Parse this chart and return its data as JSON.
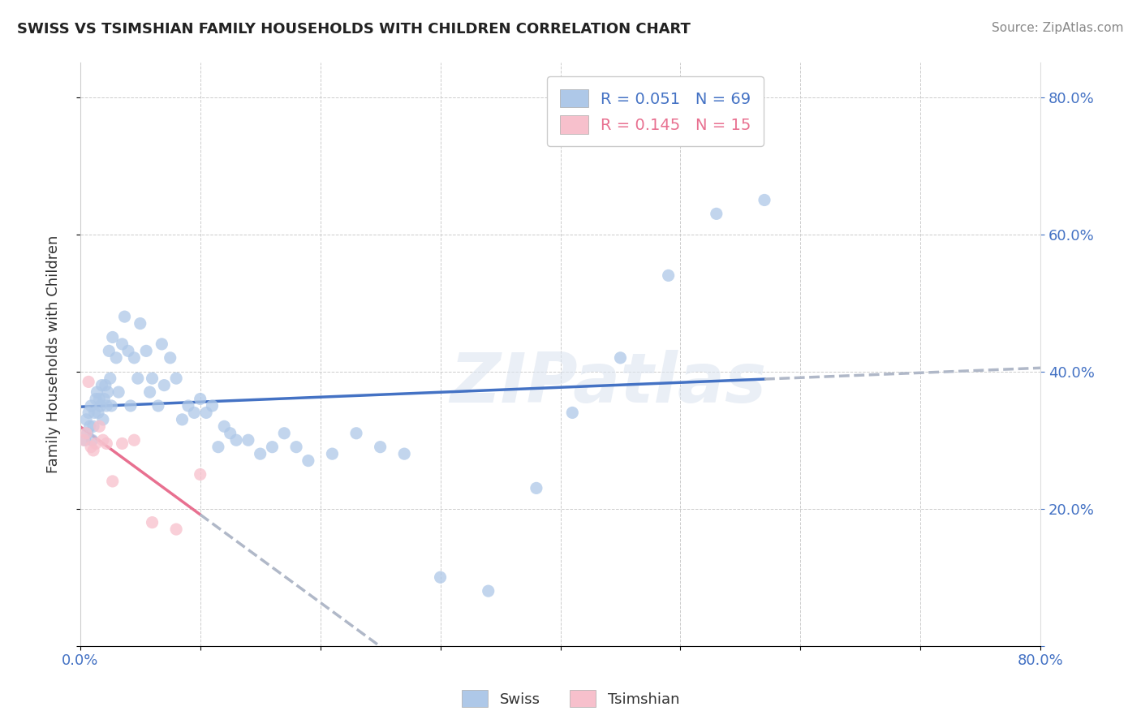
{
  "title": "SWISS VS TSIMSHIAN FAMILY HOUSEHOLDS WITH CHILDREN CORRELATION CHART",
  "source": "Source: ZipAtlas.com",
  "ylabel": "Family Households with Children",
  "xlim": [
    0.0,
    0.8
  ],
  "ylim": [
    0.0,
    0.85
  ],
  "swiss_R": 0.051,
  "swiss_N": 69,
  "tsimshian_R": 0.145,
  "tsimshian_N": 15,
  "swiss_color": "#aec8e8",
  "tsimshian_color": "#f7c0cc",
  "swiss_line_color": "#4472c4",
  "tsimshian_line_color": "#e87090",
  "swiss_x": [
    0.004,
    0.005,
    0.006,
    0.007,
    0.008,
    0.009,
    0.01,
    0.011,
    0.012,
    0.013,
    0.014,
    0.015,
    0.016,
    0.017,
    0.018,
    0.019,
    0.02,
    0.021,
    0.022,
    0.023,
    0.024,
    0.025,
    0.026,
    0.027,
    0.03,
    0.032,
    0.035,
    0.037,
    0.04,
    0.042,
    0.045,
    0.048,
    0.05,
    0.055,
    0.058,
    0.06,
    0.065,
    0.068,
    0.07,
    0.075,
    0.08,
    0.085,
    0.09,
    0.095,
    0.1,
    0.105,
    0.11,
    0.115,
    0.12,
    0.125,
    0.13,
    0.14,
    0.15,
    0.16,
    0.17,
    0.18,
    0.19,
    0.21,
    0.23,
    0.25,
    0.27,
    0.3,
    0.34,
    0.38,
    0.41,
    0.45,
    0.49,
    0.53,
    0.57
  ],
  "swiss_y": [
    0.3,
    0.33,
    0.31,
    0.34,
    0.32,
    0.35,
    0.3,
    0.32,
    0.34,
    0.36,
    0.37,
    0.34,
    0.36,
    0.35,
    0.38,
    0.33,
    0.36,
    0.38,
    0.35,
    0.37,
    0.43,
    0.39,
    0.35,
    0.45,
    0.42,
    0.37,
    0.44,
    0.48,
    0.43,
    0.35,
    0.42,
    0.39,
    0.47,
    0.43,
    0.37,
    0.39,
    0.35,
    0.44,
    0.38,
    0.42,
    0.39,
    0.33,
    0.35,
    0.34,
    0.36,
    0.34,
    0.35,
    0.29,
    0.32,
    0.31,
    0.3,
    0.3,
    0.28,
    0.29,
    0.31,
    0.29,
    0.27,
    0.28,
    0.31,
    0.29,
    0.28,
    0.1,
    0.08,
    0.23,
    0.34,
    0.42,
    0.54,
    0.63,
    0.65
  ],
  "tsimshian_x": [
    0.003,
    0.005,
    0.007,
    0.009,
    0.011,
    0.013,
    0.016,
    0.019,
    0.022,
    0.027,
    0.035,
    0.045,
    0.06,
    0.08,
    0.1
  ],
  "tsimshian_y": [
    0.3,
    0.31,
    0.385,
    0.29,
    0.285,
    0.295,
    0.32,
    0.3,
    0.295,
    0.24,
    0.295,
    0.3,
    0.18,
    0.17,
    0.25
  ]
}
